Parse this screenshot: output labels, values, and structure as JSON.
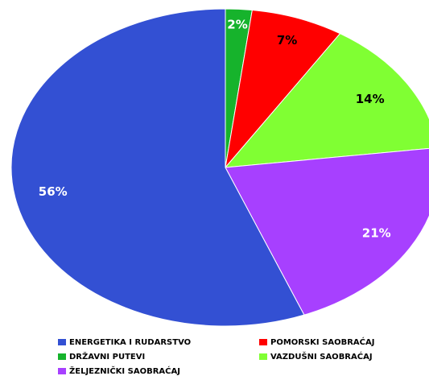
{
  "chart_data": {
    "type": "pie",
    "categories": [
      "DRŽAVNI PUTEVI",
      "POMORSKI SAOBRAĆAJ",
      "VAZDUŠNI SAOBRAĆAJ",
      "ŽELJEZNIČKI SAOBRAĆAJ",
      "ENERGETIKA I RUDARSTVO"
    ],
    "values": [
      2,
      7,
      14,
      21,
      56
    ],
    "value_labels": [
      "2%",
      "7%",
      "14%",
      "21%",
      "56%"
    ],
    "colors": [
      "#16b32c",
      "#ff0000",
      "#80ff33",
      "#a740ff",
      "#3350d3"
    ],
    "legend": "bottom"
  }
}
